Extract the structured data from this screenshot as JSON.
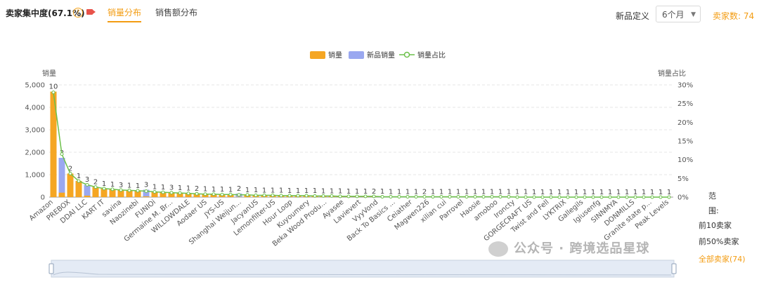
{
  "header": {
    "title": "卖家集中度(67.1%)",
    "help_icon": "?",
    "tabs": [
      "销量分布",
      "销售额分布"
    ],
    "new_product_label": "新品定义",
    "period_select": "6个月",
    "seller_count": "卖家数: 74"
  },
  "range_panel": {
    "label_1": "范",
    "label_2": "围:",
    "options": [
      "前10卖家",
      "前50%卖家",
      "全部卖家(74)"
    ]
  },
  "watermark": "公众号 · 跨境选品星球",
  "colors": {
    "sales": "#f5a623",
    "new_sales": "#9aa8f0",
    "share": "#6cc04a",
    "accent": "#f39c12"
  },
  "chart_data": {
    "type": "bar",
    "legend": [
      "销量",
      "新品销量",
      "销量占比"
    ],
    "legend_position": "top-center",
    "ylabel": "销量",
    "y2label": "销量占比",
    "ylim": [
      0,
      5000
    ],
    "y_ticks": [
      "0",
      "1,000",
      "2,000",
      "3,000",
      "4,000",
      "5,000"
    ],
    "y2lim": [
      0,
      30
    ],
    "y2_ticks": [
      "0%",
      "5%",
      "10%",
      "15%",
      "20%",
      "25%",
      "30%"
    ],
    "grid": true,
    "x_tick_labels": [
      "Amazon",
      "PREBOX",
      "DDAI LLC",
      "KART IT",
      "savina",
      "Naozinebi",
      "FUNIOi",
      "Germaine M. Br...",
      "WILLOWDALE",
      "Aodaer US",
      "JYS-US",
      "Shanghai Weijun...",
      "JacyanUS",
      "Lemonfilter-US",
      "Hour Loop",
      "Kuyoumery",
      "Beka Wood Produ...",
      "Ayasee",
      "Lavievert",
      "VyyVond",
      "Back To Basics ...",
      "Ceiather",
      "Magwen226",
      "xilian cui",
      "Parrovel",
      "Haosie",
      "amoboo",
      "Ironcty",
      "GORGECRAFT US",
      "Twist and Fell",
      "LYKTRIX",
      "Gallegils",
      "Igiusenfg",
      "SINNMYA",
      "DONMILLS",
      "Granite state p...",
      "Peak Levels"
    ],
    "series": [
      {
        "name": "销量",
        "values": [
          4700,
          1650,
          1050,
          720,
          560,
          450,
          380,
          350,
          320,
          300,
          280,
          260,
          240,
          220,
          200,
          180,
          170,
          150,
          140,
          130,
          120,
          110,
          100,
          95,
          90,
          85,
          80,
          75,
          70,
          65,
          60,
          55,
          50,
          45,
          40,
          35,
          30,
          28,
          26,
          24,
          22,
          20,
          19,
          18,
          17,
          16,
          15,
          14,
          13,
          12,
          11,
          10,
          10,
          9,
          9,
          8,
          8,
          7,
          7,
          6,
          6,
          5,
          5,
          5,
          4,
          4,
          4,
          3,
          3,
          3,
          2,
          2,
          2,
          2
        ]
      },
      {
        "name": "新品销量",
        "values": [
          0,
          1750,
          0,
          0,
          550,
          0,
          0,
          0,
          0,
          0,
          0,
          330,
          0,
          0,
          0,
          0,
          0,
          0,
          0,
          0,
          0,
          0,
          160,
          0,
          0,
          0,
          0,
          0,
          0,
          0,
          0,
          0,
          0,
          0,
          0,
          0,
          0,
          0,
          0,
          0,
          0,
          0,
          0,
          0,
          0,
          0,
          0,
          0,
          0,
          0,
          0,
          0,
          0,
          0,
          0,
          0,
          0,
          0,
          0,
          0,
          0,
          0,
          0,
          0,
          0,
          0,
          0,
          0,
          0,
          0,
          0,
          0,
          0,
          0
        ]
      },
      {
        "name": "销量占比",
        "values": [
          28.0,
          11.5,
          6.3,
          4.3,
          3.3,
          2.7,
          2.3,
          2.1,
          1.9,
          1.8,
          1.7,
          1.6,
          1.4,
          1.3,
          1.2,
          1.1,
          1.0,
          0.9,
          0.8,
          0.8,
          0.7,
          0.7,
          0.6,
          0.6,
          0.5,
          0.5,
          0.5,
          0.4,
          0.4,
          0.4,
          0.4,
          0.3,
          0.3,
          0.3,
          0.2,
          0.2,
          0.2,
          0.2,
          0.2,
          0.1,
          0.1,
          0.1,
          0.1,
          0.1,
          0.1,
          0.1,
          0.1,
          0.1,
          0.1,
          0.1,
          0.1,
          0.1,
          0.1,
          0.1,
          0.1,
          0.0,
          0.0,
          0.0,
          0.0,
          0.0,
          0.0,
          0.0,
          0.0,
          0.0,
          0.0,
          0.0,
          0.0,
          0.0,
          0.0,
          0.0,
          0.0,
          0.0,
          0.0,
          0.0
        ]
      }
    ],
    "bar_labels": [
      "10",
      "2",
      "2",
      "1",
      "3",
      "2",
      "1",
      "1",
      "3",
      "1",
      "1",
      "3",
      "1",
      "1",
      "3",
      "1",
      "1",
      "2",
      "1",
      "1",
      "1",
      "1",
      "2",
      "1",
      "1",
      "1",
      "1",
      "1",
      "1",
      "1",
      "1",
      "1",
      "1",
      "1",
      "1",
      "1",
      "1",
      "1",
      "2",
      "1",
      "1",
      "1",
      "1",
      "1",
      "2",
      "1",
      "1",
      "1",
      "1",
      "1",
      "1",
      "1",
      "1",
      "1",
      "1",
      "1",
      "1",
      "1",
      "1",
      "1",
      "1",
      "1",
      "1",
      "1",
      "1",
      "1",
      "1",
      "1",
      "1",
      "1",
      "1",
      "1",
      "1",
      "1"
    ]
  }
}
